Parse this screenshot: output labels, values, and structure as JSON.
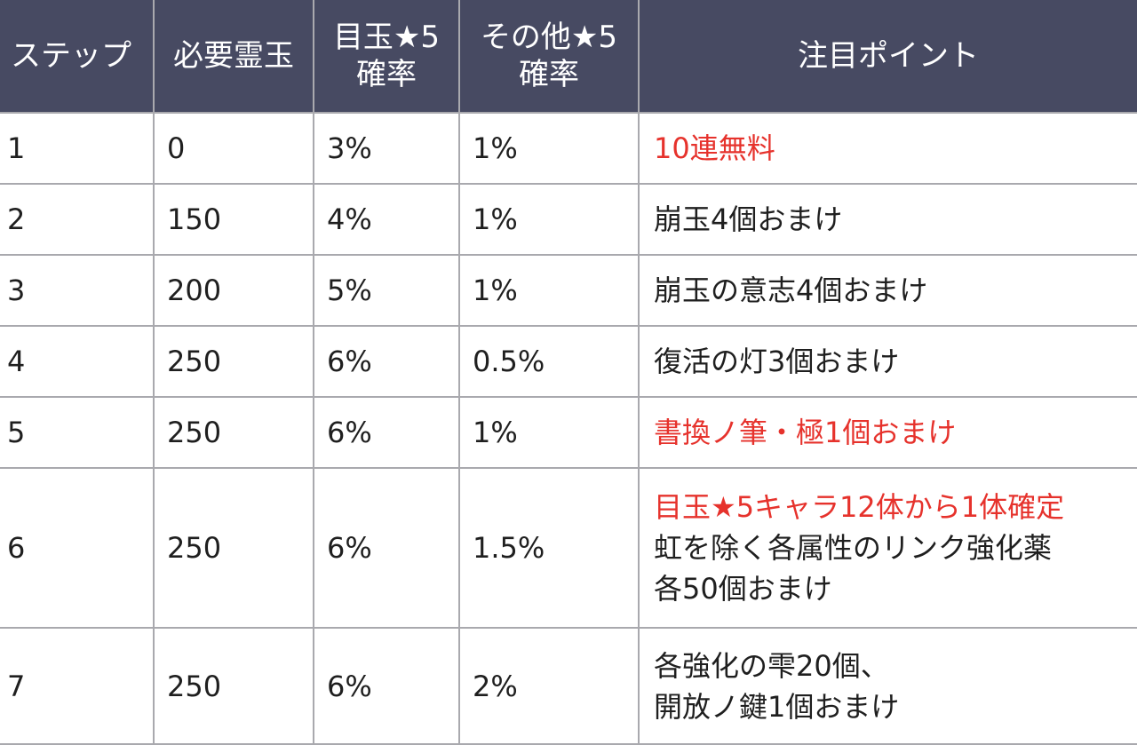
{
  "header": {
    "step": "ステップ",
    "required": "必要霊玉",
    "featured_rate": [
      "目玉★5",
      "確率"
    ],
    "other_rate": [
      "その他★5",
      "確率"
    ],
    "point": "注目ポイント"
  },
  "rows": [
    {
      "step": "1",
      "required": "0",
      "featured": "3%",
      "other": "1%",
      "point": [
        "10連無料"
      ],
      "point_red": [
        true
      ]
    },
    {
      "step": "2",
      "required": "150",
      "featured": "4%",
      "other": "1%",
      "point": [
        "崩玉4個おまけ"
      ],
      "point_red": [
        false
      ]
    },
    {
      "step": "3",
      "required": "200",
      "featured": "5%",
      "other": "1%",
      "point": [
        "崩玉の意志4個おまけ"
      ],
      "point_red": [
        false
      ]
    },
    {
      "step": "4",
      "required": "250",
      "featured": "6%",
      "other": "0.5%",
      "point": [
        "復活の灯3個おまけ"
      ],
      "point_red": [
        false
      ]
    },
    {
      "step": "5",
      "required": "250",
      "featured": "6%",
      "other": "1%",
      "point": [
        "書換ノ筆・極1個おまけ"
      ],
      "point_red": [
        true
      ]
    },
    {
      "step": "6",
      "required": "250",
      "featured": "6%",
      "other": "1.5%",
      "point": [
        "目玉★5キャラ12体から1体確定",
        "虹を除く各属性のリンク強化薬",
        "各50個おまけ"
      ],
      "point_red": [
        true,
        false,
        false
      ]
    },
    {
      "step": "7",
      "required": "250",
      "featured": "6%",
      "other": "2%",
      "point": [
        "各強化の雫20個、",
        "開放ノ鍵1個おまけ"
      ],
      "point_red": [
        false,
        false
      ]
    }
  ],
  "colors": {
    "header_bg": "#474a62",
    "header_text": "#ffffff",
    "grid": "#a9a9ae",
    "highlight_red": "#e6322c",
    "body_text": "#1f1f1f"
  }
}
